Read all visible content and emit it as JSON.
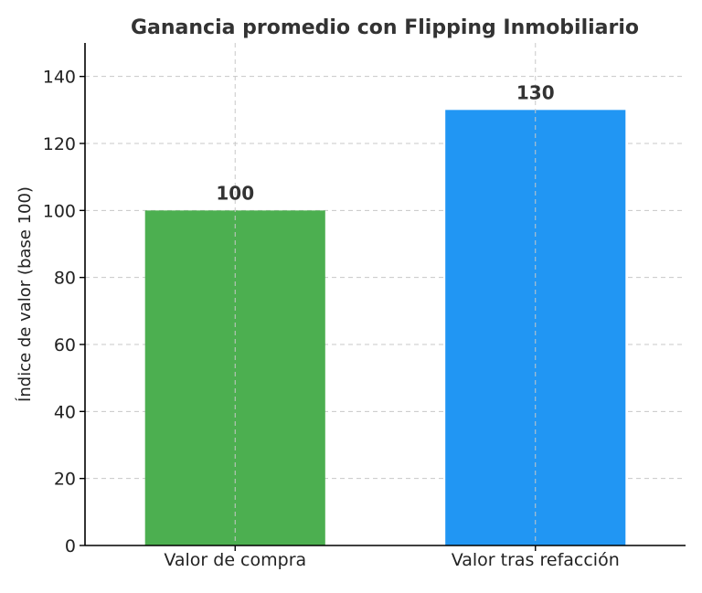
{
  "chart_data": {
    "type": "bar",
    "title": "Ganancia promedio con Flipping Inmobiliario",
    "xlabel": "",
    "ylabel": "Índice de valor (base 100)",
    "categories": [
      "Valor de compra",
      "Valor tras refacción"
    ],
    "values": [
      100,
      130
    ],
    "data_labels": [
      "100",
      "130"
    ],
    "colors": [
      "#4caf50",
      "#2196f3"
    ],
    "ylim": [
      0,
      150
    ],
    "yticks": [
      0,
      20,
      40,
      60,
      80,
      100,
      120,
      140
    ],
    "ytick_labels": [
      "0",
      "20",
      "40",
      "60",
      "80",
      "100",
      "120",
      "140"
    ],
    "grid": true,
    "legend": "none"
  }
}
